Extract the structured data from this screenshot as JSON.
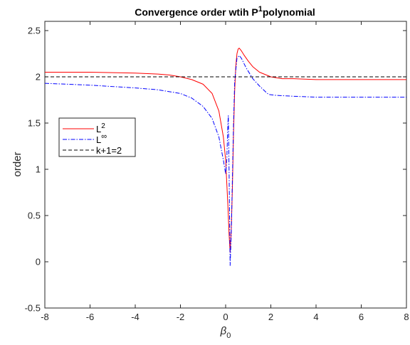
{
  "chart_data": {
    "type": "line",
    "title": "Convergence order wtih P",
    "title_superscript": "1",
    "title_suffix": "polynomial",
    "xlabel": "β",
    "xlabel_subscript": "0",
    "ylabel": "order",
    "xlim": [
      -8,
      8
    ],
    "ylim": [
      -0.5,
      2.6
    ],
    "xticks": [
      -8,
      -6,
      -4,
      -2,
      0,
      2,
      4,
      6,
      8
    ],
    "yticks": [
      -0.5,
      0,
      0.5,
      1,
      1.5,
      2,
      2.5
    ],
    "ytick_labels": [
      "-0.5",
      "0",
      "0.5",
      "1",
      "1.5",
      "2",
      "2.5"
    ],
    "grid": false,
    "legend_position": "left",
    "series": [
      {
        "name": "L",
        "name_superscript": "2",
        "color": "#ff0000",
        "dash": "solid",
        "x": [
          -8,
          -6,
          -4,
          -3,
          -2.5,
          -2,
          -1.5,
          -1,
          -0.6,
          -0.3,
          -0.1,
          0,
          0.1,
          0.15,
          0.2,
          0.25,
          0.3,
          0.35,
          0.4,
          0.45,
          0.5,
          0.55,
          0.6,
          0.7,
          0.8,
          1,
          1.2,
          1.5,
          2,
          2.5,
          3,
          4,
          5,
          6,
          8
        ],
        "y": [
          2.05,
          2.05,
          2.04,
          2.03,
          2.02,
          2.0,
          1.97,
          1.92,
          1.82,
          1.63,
          1.35,
          1.1,
          0.6,
          0.3,
          0.1,
          0.35,
          0.8,
          1.4,
          1.85,
          2.12,
          2.25,
          2.3,
          2.31,
          2.28,
          2.24,
          2.17,
          2.11,
          2.05,
          2.0,
          1.98,
          1.98,
          1.97,
          1.97,
          1.97,
          1.97
        ]
      },
      {
        "name": "L",
        "name_superscript": "∞",
        "color": "#0000ff",
        "dash": "dashdot",
        "x": [
          -8,
          -6,
          -4,
          -3,
          -2,
          -1.5,
          -1,
          -0.6,
          -0.3,
          -0.1,
          0,
          0.05,
          0.1,
          0.12,
          0.15,
          0.2,
          0.25,
          0.3,
          0.35,
          0.4,
          0.5,
          0.6,
          0.7,
          0.9,
          1.2,
          1.5,
          1.8,
          1.9,
          2.2,
          3,
          4,
          5,
          6,
          8
        ],
        "y": [
          1.93,
          1.91,
          1.88,
          1.86,
          1.82,
          1.77,
          1.68,
          1.55,
          1.35,
          1.1,
          0.95,
          1.1,
          1.5,
          1.58,
          1.0,
          -0.04,
          0.3,
          0.9,
          1.5,
          1.95,
          2.2,
          2.23,
          2.2,
          2.1,
          1.98,
          1.9,
          1.83,
          1.81,
          1.8,
          1.79,
          1.78,
          1.78,
          1.78,
          1.78
        ]
      },
      {
        "name": "k+1=2",
        "color": "#000000",
        "dash": "dashed",
        "x": [
          -8,
          8
        ],
        "y": [
          2,
          2
        ]
      }
    ]
  }
}
